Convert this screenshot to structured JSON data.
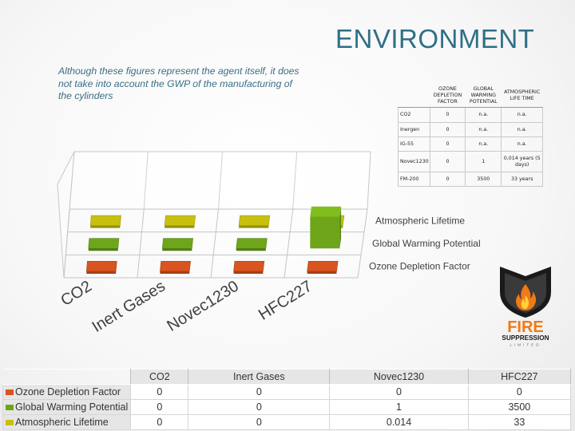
{
  "slide": {
    "title": "ENVIRONMENT",
    "note": "Although these figures represent the agent itself, it does not take into account the GWP of the manufacturing of the cylinders"
  },
  "chart_data": {
    "type": "bar",
    "categories": [
      "CO2",
      "Inert Gases",
      "Novec1230",
      "HFC227"
    ],
    "series": [
      {
        "name": "Ozone Depletion Factor",
        "values": [
          0,
          0,
          0,
          0
        ],
        "color": "#d9541e"
      },
      {
        "name": "Global Warming Potential",
        "values": [
          0,
          0,
          1,
          3500
        ],
        "color": "#6fa51a"
      },
      {
        "name": "Atmospheric Lifetime",
        "values": [
          0,
          0,
          0.014,
          33
        ],
        "color": "#c8c00f"
      }
    ],
    "title": "",
    "legend": "right"
  },
  "agent_table": {
    "headers": [
      "",
      "OZONE DEPLETION FACTOR",
      "GLOBAL WARMING POTENTIAL",
      "ATMOSPHERIC LIFE TIME"
    ],
    "rows": [
      [
        "CO2",
        "0",
        "n.a.",
        "n.a."
      ],
      [
        "Inergen",
        "0",
        "n.a.",
        "n.a."
      ],
      [
        "IG-55",
        "0",
        "n.a.",
        "n.a."
      ],
      [
        "Novec1230",
        "0",
        "1",
        "0,014 years (5 days)"
      ],
      [
        "FM-200",
        "0",
        "3500",
        "33 years"
      ]
    ]
  },
  "logo": {
    "line1": "FIRE",
    "line2": "SUPPRESSION",
    "line3": "LIMITED"
  },
  "data_table": {
    "columns": [
      "CO2",
      "Inert Gases",
      "Novec1230",
      "HFC227"
    ],
    "rows": [
      {
        "label": "Ozone Depletion Factor",
        "values": [
          "0",
          "0",
          "0",
          "0"
        ]
      },
      {
        "label": "Global Warming Potential",
        "values": [
          "0",
          "0",
          "1",
          "3500"
        ]
      },
      {
        "label": "Atmospheric Lifetime",
        "values": [
          "0",
          "0",
          "0.014",
          "33"
        ]
      }
    ]
  }
}
